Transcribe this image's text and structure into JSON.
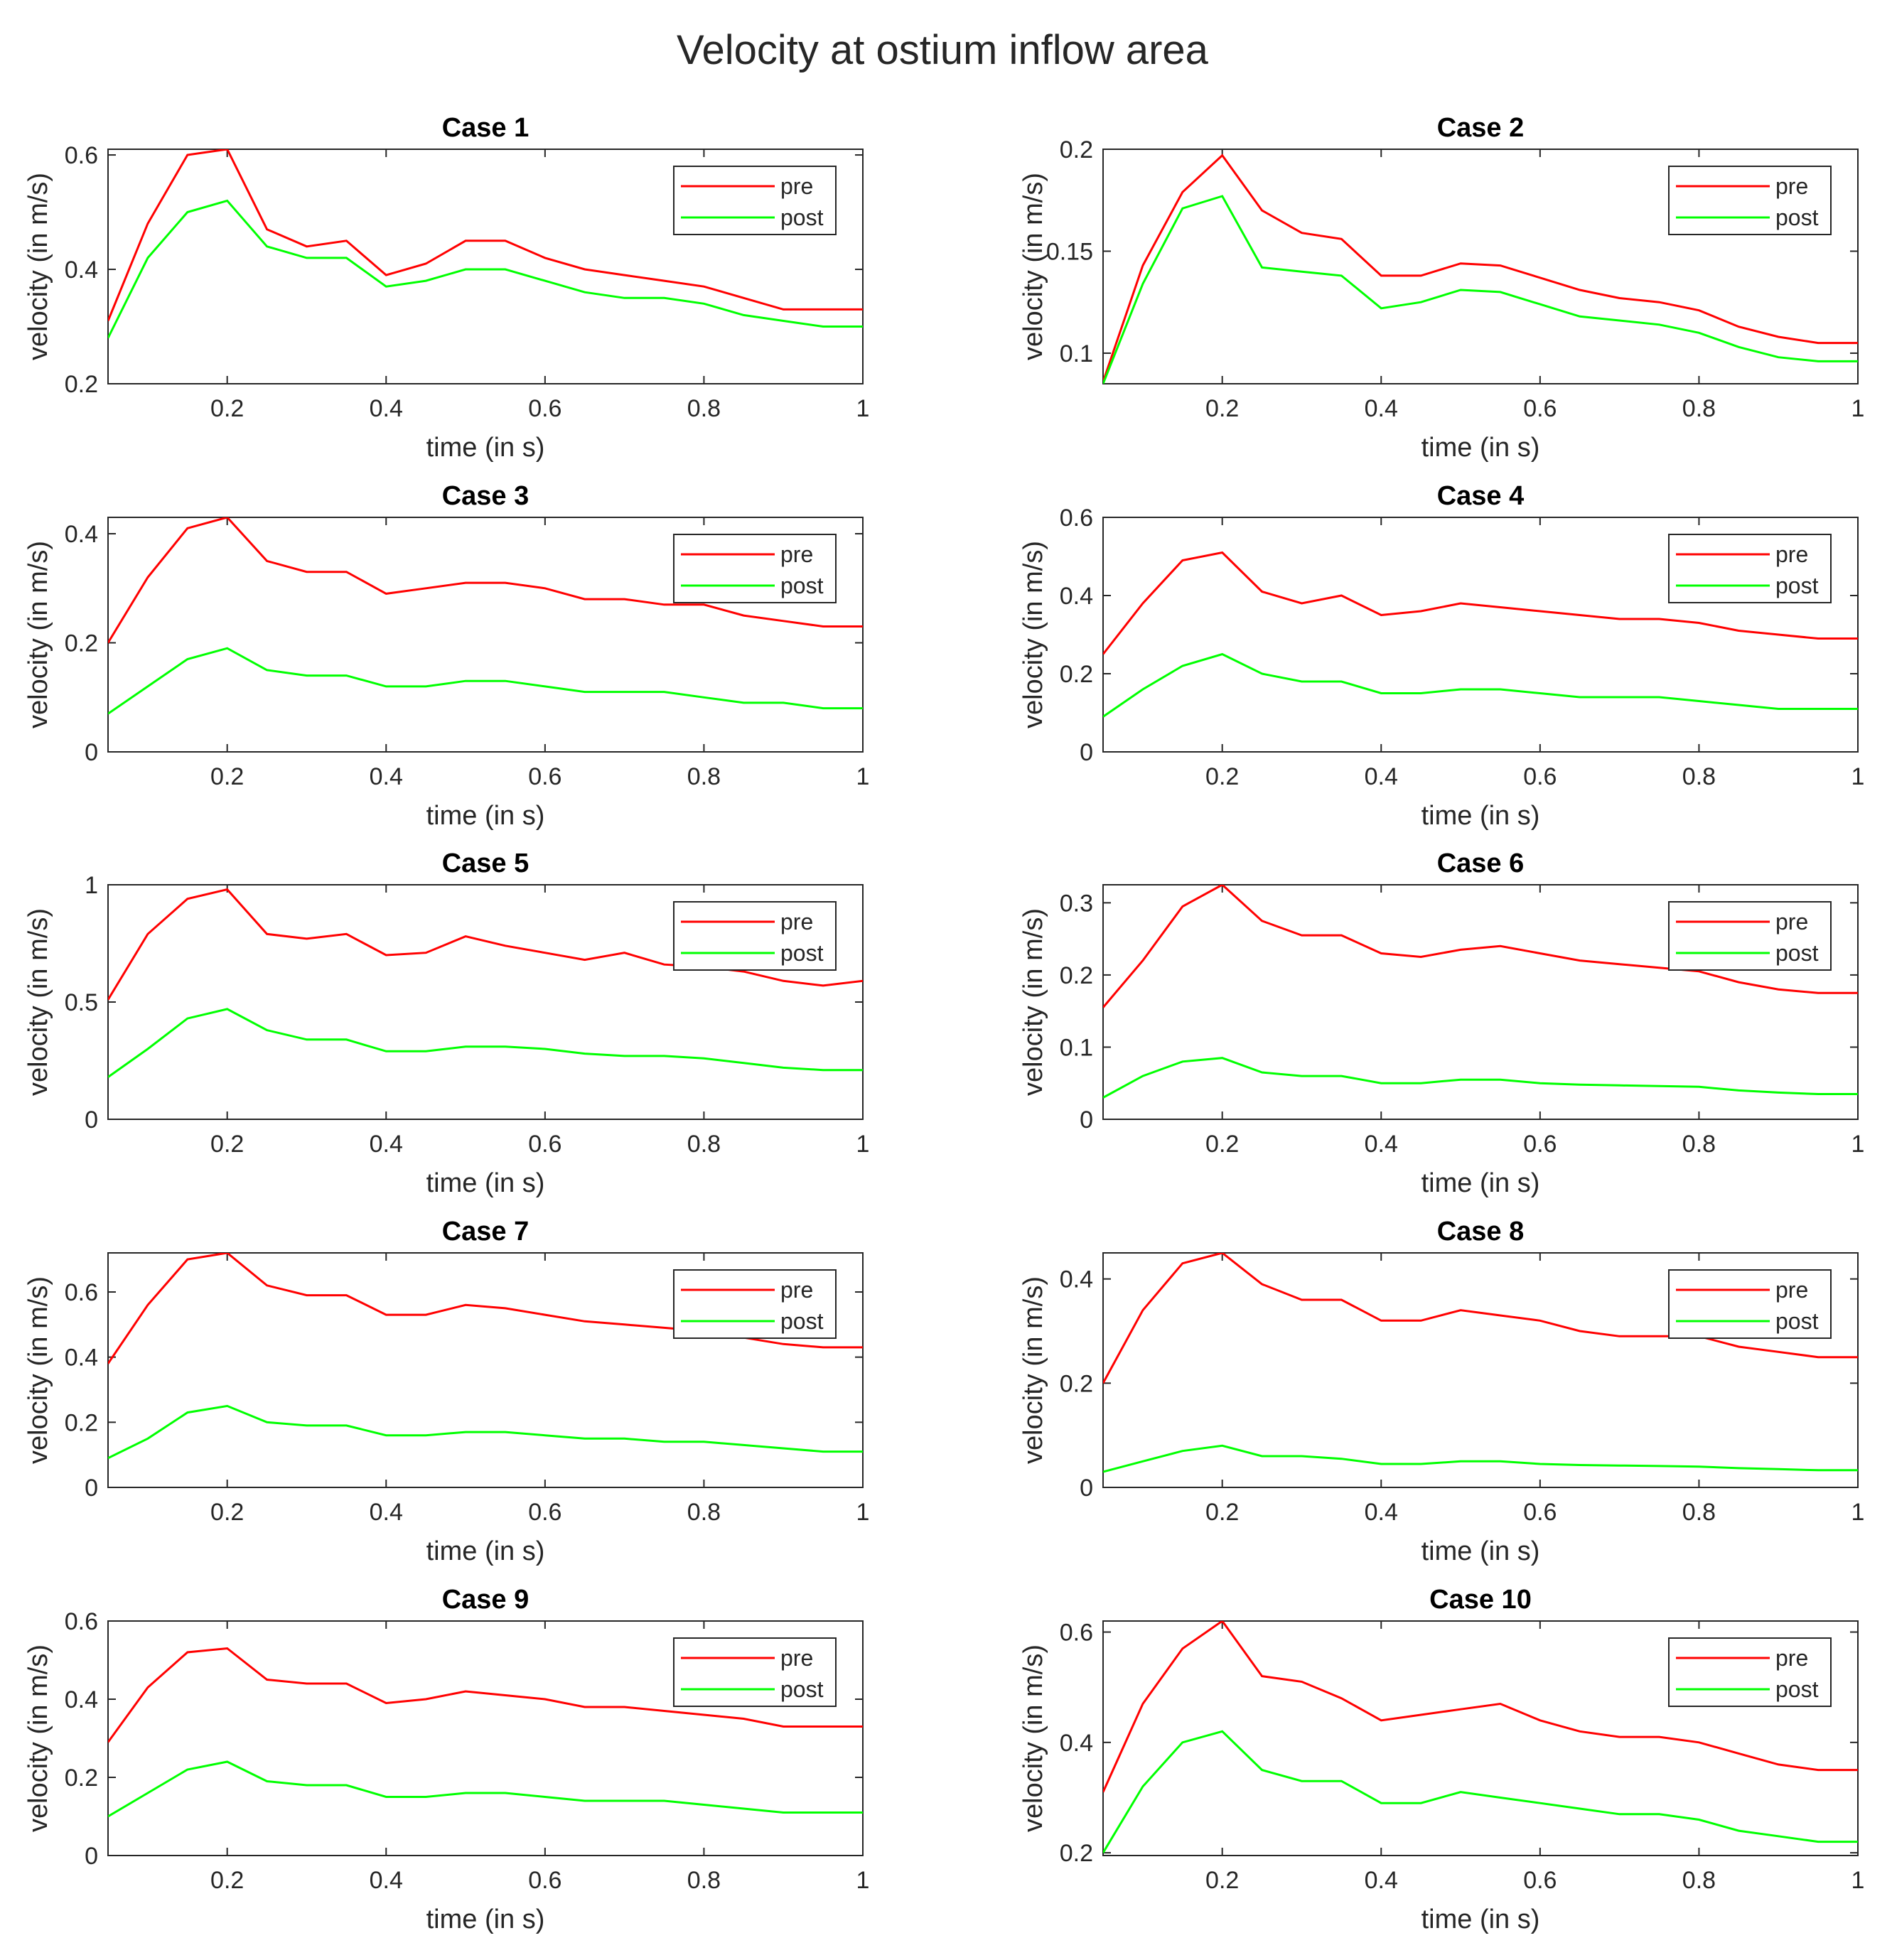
{
  "figure_title": "Velocity at ostium inflow area",
  "colors": {
    "pre": "#ff0000",
    "post": "#00ff00",
    "axes": "#262626"
  },
  "chart_data": [
    {
      "type": "line",
      "title": "Case 1",
      "xlabel": "time (in s)",
      "ylabel": "velocity (in m/s)",
      "xlim": [
        0.05,
        1
      ],
      "ylim": [
        0.2,
        0.61
      ],
      "xticks": [
        0.2,
        0.4,
        0.6,
        0.8,
        1
      ],
      "xtick_labels": [
        "0.2",
        "0.4",
        "0.6",
        "0.8",
        "1"
      ],
      "yticks": [
        0.2,
        0.4,
        0.6
      ],
      "ytick_labels": [
        "0.2",
        "0.4",
        "0.6"
      ],
      "x": [
        0.05,
        0.1,
        0.15,
        0.2,
        0.25,
        0.3,
        0.35,
        0.4,
        0.45,
        0.5,
        0.55,
        0.6,
        0.65,
        0.7,
        0.75,
        0.8,
        0.85,
        0.9,
        0.95,
        1.0
      ],
      "series": [
        {
          "name": "pre",
          "values": [
            0.31,
            0.48,
            0.6,
            0.61,
            0.47,
            0.44,
            0.45,
            0.39,
            0.41,
            0.45,
            0.45,
            0.42,
            0.4,
            0.39,
            0.38,
            0.37,
            0.35,
            0.33,
            0.33,
            0.33
          ]
        },
        {
          "name": "post",
          "values": [
            0.28,
            0.42,
            0.5,
            0.52,
            0.44,
            0.42,
            0.42,
            0.37,
            0.38,
            0.4,
            0.4,
            0.38,
            0.36,
            0.35,
            0.35,
            0.34,
            0.32,
            0.31,
            0.3,
            0.3
          ]
        }
      ],
      "legend": [
        "pre",
        "post"
      ],
      "legend_location": "top-right"
    },
    {
      "type": "line",
      "title": "Case 2",
      "xlabel": "time (in s)",
      "ylabel": "velocity (in m/s)",
      "xlim": [
        0.05,
        1
      ],
      "ylim": [
        0.085,
        0.2
      ],
      "xticks": [
        0.2,
        0.4,
        0.6,
        0.8,
        1
      ],
      "xtick_labels": [
        "0.2",
        "0.4",
        "0.6",
        "0.8",
        "1"
      ],
      "yticks": [
        0.1,
        0.15,
        0.2
      ],
      "ytick_labels": [
        "0.1",
        "0.15",
        "0.2"
      ],
      "x": [
        0.05,
        0.1,
        0.15,
        0.2,
        0.25,
        0.3,
        0.35,
        0.4,
        0.45,
        0.5,
        0.55,
        0.6,
        0.65,
        0.7,
        0.75,
        0.8,
        0.85,
        0.9,
        0.95,
        1.0
      ],
      "series": [
        {
          "name": "pre",
          "values": [
            0.086,
            0.143,
            0.179,
            0.197,
            0.17,
            0.159,
            0.156,
            0.138,
            0.138,
            0.144,
            0.143,
            0.137,
            0.131,
            0.127,
            0.125,
            0.121,
            0.113,
            0.108,
            0.105,
            0.105
          ]
        },
        {
          "name": "post",
          "values": [
            0.085,
            0.134,
            0.171,
            0.177,
            0.142,
            0.14,
            0.138,
            0.122,
            0.125,
            0.131,
            0.13,
            0.124,
            0.118,
            0.116,
            0.114,
            0.11,
            0.103,
            0.098,
            0.096,
            0.096
          ]
        }
      ],
      "legend": [
        "pre",
        "post"
      ],
      "legend_location": "top-right"
    },
    {
      "type": "line",
      "title": "Case 3",
      "xlabel": "time (in s)",
      "ylabel": "velocity (in m/s)",
      "xlim": [
        0.05,
        1
      ],
      "ylim": [
        0,
        0.43
      ],
      "xticks": [
        0.2,
        0.4,
        0.6,
        0.8,
        1
      ],
      "xtick_labels": [
        "0.2",
        "0.4",
        "0.6",
        "0.8",
        "1"
      ],
      "yticks": [
        0,
        0.2,
        0.4
      ],
      "ytick_labels": [
        "0",
        "0.2",
        "0.4"
      ],
      "x": [
        0.05,
        0.1,
        0.15,
        0.2,
        0.25,
        0.3,
        0.35,
        0.4,
        0.45,
        0.5,
        0.55,
        0.6,
        0.65,
        0.7,
        0.75,
        0.8,
        0.85,
        0.9,
        0.95,
        1.0
      ],
      "series": [
        {
          "name": "pre",
          "values": [
            0.2,
            0.32,
            0.41,
            0.43,
            0.35,
            0.33,
            0.33,
            0.29,
            0.3,
            0.31,
            0.31,
            0.3,
            0.28,
            0.28,
            0.27,
            0.27,
            0.25,
            0.24,
            0.23,
            0.23
          ]
        },
        {
          "name": "post",
          "values": [
            0.07,
            0.12,
            0.17,
            0.19,
            0.15,
            0.14,
            0.14,
            0.12,
            0.12,
            0.13,
            0.13,
            0.12,
            0.11,
            0.11,
            0.11,
            0.1,
            0.09,
            0.09,
            0.08,
            0.08
          ]
        }
      ],
      "legend": [
        "pre",
        "post"
      ],
      "legend_location": "top-right"
    },
    {
      "type": "line",
      "title": "Case 4",
      "xlabel": "time (in s)",
      "ylabel": "velocity (in m/s)",
      "xlim": [
        0.05,
        1
      ],
      "ylim": [
        0,
        0.6
      ],
      "xticks": [
        0.2,
        0.4,
        0.6,
        0.8,
        1
      ],
      "xtick_labels": [
        "0.2",
        "0.4",
        "0.6",
        "0.8",
        "1"
      ],
      "yticks": [
        0,
        0.2,
        0.4,
        0.6
      ],
      "ytick_labels": [
        "0",
        "0.2",
        "0.4",
        "0.6"
      ],
      "x": [
        0.05,
        0.1,
        0.15,
        0.2,
        0.25,
        0.3,
        0.35,
        0.4,
        0.45,
        0.5,
        0.55,
        0.6,
        0.65,
        0.7,
        0.75,
        0.8,
        0.85,
        0.9,
        0.95,
        1.0
      ],
      "series": [
        {
          "name": "pre",
          "values": [
            0.25,
            0.38,
            0.49,
            0.51,
            0.41,
            0.38,
            0.4,
            0.35,
            0.36,
            0.38,
            0.37,
            0.36,
            0.35,
            0.34,
            0.34,
            0.33,
            0.31,
            0.3,
            0.29,
            0.29
          ]
        },
        {
          "name": "post",
          "values": [
            0.09,
            0.16,
            0.22,
            0.25,
            0.2,
            0.18,
            0.18,
            0.15,
            0.15,
            0.16,
            0.16,
            0.15,
            0.14,
            0.14,
            0.14,
            0.13,
            0.12,
            0.11,
            0.11,
            0.11
          ]
        }
      ],
      "legend": [
        "pre",
        "post"
      ],
      "legend_location": "top-right"
    },
    {
      "type": "line",
      "title": "Case 5",
      "xlabel": "time (in s)",
      "ylabel": "velocity (in m/s)",
      "xlim": [
        0.05,
        1
      ],
      "ylim": [
        0,
        1
      ],
      "xticks": [
        0.2,
        0.4,
        0.6,
        0.8,
        1
      ],
      "xtick_labels": [
        "0.2",
        "0.4",
        "0.6",
        "0.8",
        "1"
      ],
      "yticks": [
        0,
        0.5,
        1
      ],
      "ytick_labels": [
        "0",
        "0.5",
        "1"
      ],
      "x": [
        0.05,
        0.1,
        0.15,
        0.2,
        0.25,
        0.3,
        0.35,
        0.4,
        0.45,
        0.5,
        0.55,
        0.6,
        0.65,
        0.7,
        0.75,
        0.8,
        0.85,
        0.9,
        0.95,
        1.0
      ],
      "series": [
        {
          "name": "pre",
          "values": [
            0.51,
            0.79,
            0.94,
            0.98,
            0.79,
            0.77,
            0.79,
            0.7,
            0.71,
            0.78,
            0.74,
            0.71,
            0.68,
            0.71,
            0.66,
            0.65,
            0.63,
            0.59,
            0.57,
            0.59
          ]
        },
        {
          "name": "post",
          "values": [
            0.18,
            0.3,
            0.43,
            0.47,
            0.38,
            0.34,
            0.34,
            0.29,
            0.29,
            0.31,
            0.31,
            0.3,
            0.28,
            0.27,
            0.27,
            0.26,
            0.24,
            0.22,
            0.21,
            0.21
          ]
        }
      ],
      "legend": [
        "pre",
        "post"
      ],
      "legend_location": "top-right"
    },
    {
      "type": "line",
      "title": "Case 6",
      "xlabel": "time (in s)",
      "ylabel": "velocity (in m/s)",
      "xlim": [
        0.05,
        1
      ],
      "ylim": [
        0,
        0.325
      ],
      "xticks": [
        0.2,
        0.4,
        0.6,
        0.8,
        1
      ],
      "xtick_labels": [
        "0.2",
        "0.4",
        "0.6",
        "0.8",
        "1"
      ],
      "yticks": [
        0,
        0.1,
        0.2,
        0.3
      ],
      "ytick_labels": [
        "0",
        "0.1",
        "0.2",
        "0.3"
      ],
      "x": [
        0.05,
        0.1,
        0.15,
        0.2,
        0.25,
        0.3,
        0.35,
        0.4,
        0.45,
        0.5,
        0.55,
        0.6,
        0.65,
        0.7,
        0.75,
        0.8,
        0.85,
        0.9,
        0.95,
        1.0
      ],
      "series": [
        {
          "name": "pre",
          "values": [
            0.155,
            0.22,
            0.295,
            0.325,
            0.275,
            0.255,
            0.255,
            0.23,
            0.225,
            0.235,
            0.24,
            0.23,
            0.22,
            0.215,
            0.21,
            0.205,
            0.19,
            0.18,
            0.175,
            0.175
          ]
        },
        {
          "name": "post",
          "values": [
            0.03,
            0.06,
            0.08,
            0.085,
            0.065,
            0.06,
            0.06,
            0.05,
            0.05,
            0.055,
            0.055,
            0.05,
            0.048,
            0.047,
            0.046,
            0.045,
            0.04,
            0.037,
            0.035,
            0.035
          ]
        }
      ],
      "legend": [
        "pre",
        "post"
      ],
      "legend_location": "top-right"
    },
    {
      "type": "line",
      "title": "Case 7",
      "xlabel": "time (in s)",
      "ylabel": "velocity (in m/s)",
      "xlim": [
        0.05,
        1
      ],
      "ylim": [
        0,
        0.72
      ],
      "xticks": [
        0.2,
        0.4,
        0.6,
        0.8,
        1
      ],
      "xtick_labels": [
        "0.2",
        "0.4",
        "0.6",
        "0.8",
        "1"
      ],
      "yticks": [
        0,
        0.2,
        0.4,
        0.6
      ],
      "ytick_labels": [
        "0",
        "0.2",
        "0.4",
        "0.6"
      ],
      "x": [
        0.05,
        0.1,
        0.15,
        0.2,
        0.25,
        0.3,
        0.35,
        0.4,
        0.45,
        0.5,
        0.55,
        0.6,
        0.65,
        0.7,
        0.75,
        0.8,
        0.85,
        0.9,
        0.95,
        1.0
      ],
      "series": [
        {
          "name": "pre",
          "values": [
            0.38,
            0.56,
            0.7,
            0.72,
            0.62,
            0.59,
            0.59,
            0.53,
            0.53,
            0.56,
            0.55,
            0.53,
            0.51,
            0.5,
            0.49,
            0.48,
            0.46,
            0.44,
            0.43,
            0.43
          ]
        },
        {
          "name": "post",
          "values": [
            0.09,
            0.15,
            0.23,
            0.25,
            0.2,
            0.19,
            0.19,
            0.16,
            0.16,
            0.17,
            0.17,
            0.16,
            0.15,
            0.15,
            0.14,
            0.14,
            0.13,
            0.12,
            0.11,
            0.11
          ]
        }
      ],
      "legend": [
        "pre",
        "post"
      ],
      "legend_location": "top-right"
    },
    {
      "type": "line",
      "title": "Case 8",
      "xlabel": "time (in s)",
      "ylabel": "velocity (in m/s)",
      "xlim": [
        0.05,
        1
      ],
      "ylim": [
        0,
        0.45
      ],
      "xticks": [
        0.2,
        0.4,
        0.6,
        0.8,
        1
      ],
      "xtick_labels": [
        "0.2",
        "0.4",
        "0.6",
        "0.8",
        "1"
      ],
      "yticks": [
        0,
        0.2,
        0.4
      ],
      "ytick_labels": [
        "0",
        "0.2",
        "0.4"
      ],
      "x": [
        0.05,
        0.1,
        0.15,
        0.2,
        0.25,
        0.3,
        0.35,
        0.4,
        0.45,
        0.5,
        0.55,
        0.6,
        0.65,
        0.7,
        0.75,
        0.8,
        0.85,
        0.9,
        0.95,
        1.0
      ],
      "series": [
        {
          "name": "pre",
          "values": [
            0.2,
            0.34,
            0.43,
            0.45,
            0.39,
            0.36,
            0.36,
            0.32,
            0.32,
            0.34,
            0.33,
            0.32,
            0.3,
            0.29,
            0.29,
            0.29,
            0.27,
            0.26,
            0.25,
            0.25
          ]
        },
        {
          "name": "post",
          "values": [
            0.03,
            0.05,
            0.07,
            0.08,
            0.06,
            0.06,
            0.055,
            0.045,
            0.045,
            0.05,
            0.05,
            0.045,
            0.043,
            0.042,
            0.041,
            0.04,
            0.037,
            0.035,
            0.033,
            0.033
          ]
        }
      ],
      "legend": [
        "pre",
        "post"
      ],
      "legend_location": "top-right"
    },
    {
      "type": "line",
      "title": "Case 9",
      "xlabel": "time (in s)",
      "ylabel": "velocity (in m/s)",
      "xlim": [
        0.05,
        1
      ],
      "ylim": [
        0,
        0.6
      ],
      "xticks": [
        0.2,
        0.4,
        0.6,
        0.8,
        1
      ],
      "xtick_labels": [
        "0.2",
        "0.4",
        "0.6",
        "0.8",
        "1"
      ],
      "yticks": [
        0,
        0.2,
        0.4,
        0.6
      ],
      "ytick_labels": [
        "0",
        "0.2",
        "0.4",
        "0.6"
      ],
      "x": [
        0.05,
        0.1,
        0.15,
        0.2,
        0.25,
        0.3,
        0.35,
        0.4,
        0.45,
        0.5,
        0.55,
        0.6,
        0.65,
        0.7,
        0.75,
        0.8,
        0.85,
        0.9,
        0.95,
        1.0
      ],
      "series": [
        {
          "name": "pre",
          "values": [
            0.29,
            0.43,
            0.52,
            0.53,
            0.45,
            0.44,
            0.44,
            0.39,
            0.4,
            0.42,
            0.41,
            0.4,
            0.38,
            0.38,
            0.37,
            0.36,
            0.35,
            0.33,
            0.33,
            0.33
          ]
        },
        {
          "name": "post",
          "values": [
            0.1,
            0.16,
            0.22,
            0.24,
            0.19,
            0.18,
            0.18,
            0.15,
            0.15,
            0.16,
            0.16,
            0.15,
            0.14,
            0.14,
            0.14,
            0.13,
            0.12,
            0.11,
            0.11,
            0.11
          ]
        }
      ],
      "legend": [
        "pre",
        "post"
      ],
      "legend_location": "top-right"
    },
    {
      "type": "line",
      "title": "Case 10",
      "xlabel": "time (in s)",
      "ylabel": "velocity (in m/s)",
      "xlim": [
        0.05,
        1
      ],
      "ylim": [
        0.195,
        0.62
      ],
      "xticks": [
        0.2,
        0.4,
        0.6,
        0.8,
        1
      ],
      "xtick_labels": [
        "0.2",
        "0.4",
        "0.6",
        "0.8",
        "1"
      ],
      "yticks": [
        0.2,
        0.4,
        0.6
      ],
      "ytick_labels": [
        "0.2",
        "0.4",
        "0.6"
      ],
      "x": [
        0.05,
        0.1,
        0.15,
        0.2,
        0.25,
        0.3,
        0.35,
        0.4,
        0.45,
        0.5,
        0.55,
        0.6,
        0.65,
        0.7,
        0.75,
        0.8,
        0.85,
        0.9,
        0.95,
        1.0
      ],
      "series": [
        {
          "name": "pre",
          "values": [
            0.31,
            0.47,
            0.57,
            0.62,
            0.52,
            0.51,
            0.48,
            0.44,
            0.45,
            0.46,
            0.47,
            0.44,
            0.42,
            0.41,
            0.41,
            0.4,
            0.38,
            0.36,
            0.35,
            0.35
          ]
        },
        {
          "name": "post",
          "values": [
            0.2,
            0.32,
            0.4,
            0.42,
            0.35,
            0.33,
            0.33,
            0.29,
            0.29,
            0.31,
            0.3,
            0.29,
            0.28,
            0.27,
            0.27,
            0.26,
            0.24,
            0.23,
            0.22,
            0.22
          ]
        }
      ],
      "legend": [
        "pre",
        "post"
      ],
      "legend_location": "top-right"
    }
  ]
}
